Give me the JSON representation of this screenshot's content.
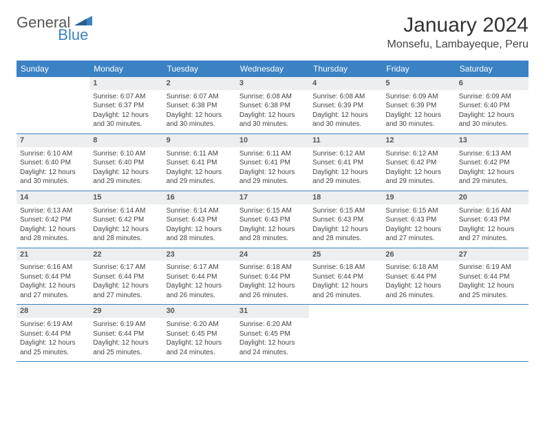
{
  "logo": {
    "text1": "General",
    "text2": "Blue"
  },
  "title": "January 2024",
  "location": "Monsefu, Lambayeque, Peru",
  "colors": {
    "header_bg": "#3b82c4",
    "header_text": "#ffffff",
    "daynum_bg": "#eceef0",
    "border": "#3b82c4",
    "body_text": "#444444",
    "page_bg": "#ffffff"
  },
  "day_names": [
    "Sunday",
    "Monday",
    "Tuesday",
    "Wednesday",
    "Thursday",
    "Friday",
    "Saturday"
  ],
  "weeks": [
    [
      {
        "day": "",
        "sunrise": "",
        "sunset": "",
        "daylight": ""
      },
      {
        "day": "1",
        "sunrise": "Sunrise: 6:07 AM",
        "sunset": "Sunset: 6:37 PM",
        "daylight": "Daylight: 12 hours and 30 minutes."
      },
      {
        "day": "2",
        "sunrise": "Sunrise: 6:07 AM",
        "sunset": "Sunset: 6:38 PM",
        "daylight": "Daylight: 12 hours and 30 minutes."
      },
      {
        "day": "3",
        "sunrise": "Sunrise: 6:08 AM",
        "sunset": "Sunset: 6:38 PM",
        "daylight": "Daylight: 12 hours and 30 minutes."
      },
      {
        "day": "4",
        "sunrise": "Sunrise: 6:08 AM",
        "sunset": "Sunset: 6:39 PM",
        "daylight": "Daylight: 12 hours and 30 minutes."
      },
      {
        "day": "5",
        "sunrise": "Sunrise: 6:09 AM",
        "sunset": "Sunset: 6:39 PM",
        "daylight": "Daylight: 12 hours and 30 minutes."
      },
      {
        "day": "6",
        "sunrise": "Sunrise: 6:09 AM",
        "sunset": "Sunset: 6:40 PM",
        "daylight": "Daylight: 12 hours and 30 minutes."
      }
    ],
    [
      {
        "day": "7",
        "sunrise": "Sunrise: 6:10 AM",
        "sunset": "Sunset: 6:40 PM",
        "daylight": "Daylight: 12 hours and 30 minutes."
      },
      {
        "day": "8",
        "sunrise": "Sunrise: 6:10 AM",
        "sunset": "Sunset: 6:40 PM",
        "daylight": "Daylight: 12 hours and 29 minutes."
      },
      {
        "day": "9",
        "sunrise": "Sunrise: 6:11 AM",
        "sunset": "Sunset: 6:41 PM",
        "daylight": "Daylight: 12 hours and 29 minutes."
      },
      {
        "day": "10",
        "sunrise": "Sunrise: 6:11 AM",
        "sunset": "Sunset: 6:41 PM",
        "daylight": "Daylight: 12 hours and 29 minutes."
      },
      {
        "day": "11",
        "sunrise": "Sunrise: 6:12 AM",
        "sunset": "Sunset: 6:41 PM",
        "daylight": "Daylight: 12 hours and 29 minutes."
      },
      {
        "day": "12",
        "sunrise": "Sunrise: 6:12 AM",
        "sunset": "Sunset: 6:42 PM",
        "daylight": "Daylight: 12 hours and 29 minutes."
      },
      {
        "day": "13",
        "sunrise": "Sunrise: 6:13 AM",
        "sunset": "Sunset: 6:42 PM",
        "daylight": "Daylight: 12 hours and 29 minutes."
      }
    ],
    [
      {
        "day": "14",
        "sunrise": "Sunrise: 6:13 AM",
        "sunset": "Sunset: 6:42 PM",
        "daylight": "Daylight: 12 hours and 28 minutes."
      },
      {
        "day": "15",
        "sunrise": "Sunrise: 6:14 AM",
        "sunset": "Sunset: 6:42 PM",
        "daylight": "Daylight: 12 hours and 28 minutes."
      },
      {
        "day": "16",
        "sunrise": "Sunrise: 6:14 AM",
        "sunset": "Sunset: 6:43 PM",
        "daylight": "Daylight: 12 hours and 28 minutes."
      },
      {
        "day": "17",
        "sunrise": "Sunrise: 6:15 AM",
        "sunset": "Sunset: 6:43 PM",
        "daylight": "Daylight: 12 hours and 28 minutes."
      },
      {
        "day": "18",
        "sunrise": "Sunrise: 6:15 AM",
        "sunset": "Sunset: 6:43 PM",
        "daylight": "Daylight: 12 hours and 28 minutes."
      },
      {
        "day": "19",
        "sunrise": "Sunrise: 6:15 AM",
        "sunset": "Sunset: 6:43 PM",
        "daylight": "Daylight: 12 hours and 27 minutes."
      },
      {
        "day": "20",
        "sunrise": "Sunrise: 6:16 AM",
        "sunset": "Sunset: 6:43 PM",
        "daylight": "Daylight: 12 hours and 27 minutes."
      }
    ],
    [
      {
        "day": "21",
        "sunrise": "Sunrise: 6:16 AM",
        "sunset": "Sunset: 6:44 PM",
        "daylight": "Daylight: 12 hours and 27 minutes."
      },
      {
        "day": "22",
        "sunrise": "Sunrise: 6:17 AM",
        "sunset": "Sunset: 6:44 PM",
        "daylight": "Daylight: 12 hours and 27 minutes."
      },
      {
        "day": "23",
        "sunrise": "Sunrise: 6:17 AM",
        "sunset": "Sunset: 6:44 PM",
        "daylight": "Daylight: 12 hours and 26 minutes."
      },
      {
        "day": "24",
        "sunrise": "Sunrise: 6:18 AM",
        "sunset": "Sunset: 6:44 PM",
        "daylight": "Daylight: 12 hours and 26 minutes."
      },
      {
        "day": "25",
        "sunrise": "Sunrise: 6:18 AM",
        "sunset": "Sunset: 6:44 PM",
        "daylight": "Daylight: 12 hours and 26 minutes."
      },
      {
        "day": "26",
        "sunrise": "Sunrise: 6:18 AM",
        "sunset": "Sunset: 6:44 PM",
        "daylight": "Daylight: 12 hours and 26 minutes."
      },
      {
        "day": "27",
        "sunrise": "Sunrise: 6:19 AM",
        "sunset": "Sunset: 6:44 PM",
        "daylight": "Daylight: 12 hours and 25 minutes."
      }
    ],
    [
      {
        "day": "28",
        "sunrise": "Sunrise: 6:19 AM",
        "sunset": "Sunset: 6:44 PM",
        "daylight": "Daylight: 12 hours and 25 minutes."
      },
      {
        "day": "29",
        "sunrise": "Sunrise: 6:19 AM",
        "sunset": "Sunset: 6:44 PM",
        "daylight": "Daylight: 12 hours and 25 minutes."
      },
      {
        "day": "30",
        "sunrise": "Sunrise: 6:20 AM",
        "sunset": "Sunset: 6:45 PM",
        "daylight": "Daylight: 12 hours and 24 minutes."
      },
      {
        "day": "31",
        "sunrise": "Sunrise: 6:20 AM",
        "sunset": "Sunset: 6:45 PM",
        "daylight": "Daylight: 12 hours and 24 minutes."
      },
      {
        "day": "",
        "sunrise": "",
        "sunset": "",
        "daylight": ""
      },
      {
        "day": "",
        "sunrise": "",
        "sunset": "",
        "daylight": ""
      },
      {
        "day": "",
        "sunrise": "",
        "sunset": "",
        "daylight": ""
      }
    ]
  ]
}
